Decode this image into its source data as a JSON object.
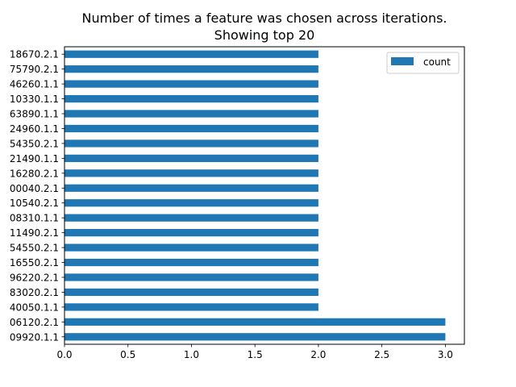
{
  "chart_data": {
    "type": "bar",
    "orientation": "horizontal",
    "title": "Number of times a feature was chosen across iterations.",
    "subtitle": "Showing top 20",
    "categories": [
      "09920.1.1",
      "06120.2.1",
      "40050.1.1",
      "83020.2.1",
      "96220.2.1",
      "16550.2.1",
      "54550.2.1",
      "11490.2.1",
      "08310.1.1",
      "10540.2.1",
      "00040.2.1",
      "16280.2.1",
      "21490.1.1",
      "54350.2.1",
      "24960.1.1",
      "63890.1.1",
      "10330.1.1",
      "46260.1.1",
      "75790.2.1",
      "18670.2.1"
    ],
    "series": [
      {
        "name": "count",
        "color": "#1f77b4",
        "values": [
          3,
          3,
          2,
          2,
          2,
          2,
          2,
          2,
          2,
          2,
          2,
          2,
          2,
          2,
          2,
          2,
          2,
          2,
          2,
          2
        ]
      }
    ],
    "xlim": [
      0,
      3.15
    ],
    "xticks": [
      "0.0",
      "0.5",
      "1.0",
      "1.5",
      "2.0",
      "2.5",
      "3.0"
    ],
    "legend_position": "top-right",
    "grid": false
  }
}
